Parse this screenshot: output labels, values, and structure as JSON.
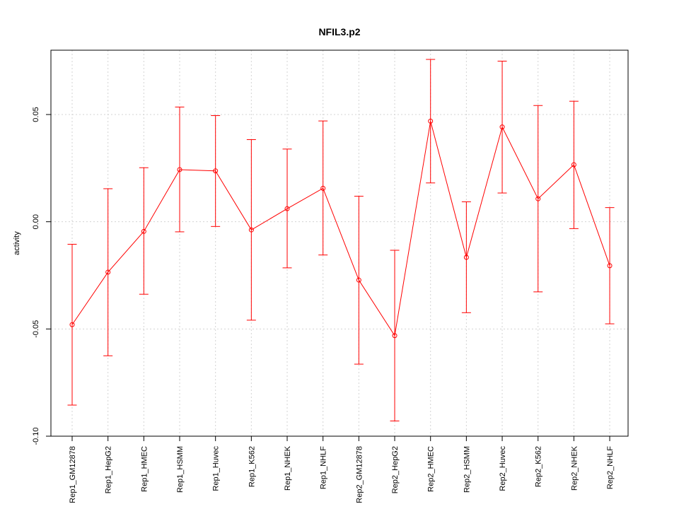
{
  "chart_data": {
    "type": "line",
    "title": "NFIL3.p2",
    "xlabel": "",
    "ylabel": "activity",
    "ylim": [
      -0.1,
      0.08
    ],
    "yticks": [
      -0.1,
      -0.05,
      0.0,
      0.05
    ],
    "ytick_labels": [
      "-0.10",
      "-0.05",
      "0.00",
      "0.05"
    ],
    "grid": true,
    "color": "#ff0000",
    "categories": [
      "Rep1_GM12878",
      "Rep1_HepG2",
      "Rep1_HMEC",
      "Rep1_HSMM",
      "Rep1_Huvec",
      "Rep1_K562",
      "Rep1_NHEK",
      "Rep1_NHLF",
      "Rep2_GM12878",
      "Rep2_HepG2",
      "Rep2_HMEC",
      "Rep2_HSMM",
      "Rep2_Huvec",
      "Rep2_K562",
      "Rep2_NHEK",
      "Rep2_NHLF"
    ],
    "values": [
      -0.048,
      -0.0235,
      -0.0045,
      0.0243,
      0.0237,
      -0.0038,
      0.0061,
      0.0156,
      -0.0272,
      -0.0531,
      0.0469,
      -0.0166,
      0.0442,
      0.0107,
      0.0266,
      -0.0205
    ],
    "upper": [
      -0.0105,
      0.0154,
      0.0252,
      0.0535,
      0.0495,
      0.0383,
      0.0339,
      0.047,
      0.0119,
      -0.0133,
      0.0757,
      0.0093,
      0.0749,
      0.0542,
      0.0562,
      0.0066
    ],
    "lower": [
      -0.0855,
      -0.0625,
      -0.0338,
      -0.0047,
      -0.0022,
      -0.0459,
      -0.0215,
      -0.0155,
      -0.0664,
      -0.0929,
      0.0181,
      -0.0424,
      0.0134,
      -0.0327,
      -0.0032,
      -0.0476
    ]
  }
}
